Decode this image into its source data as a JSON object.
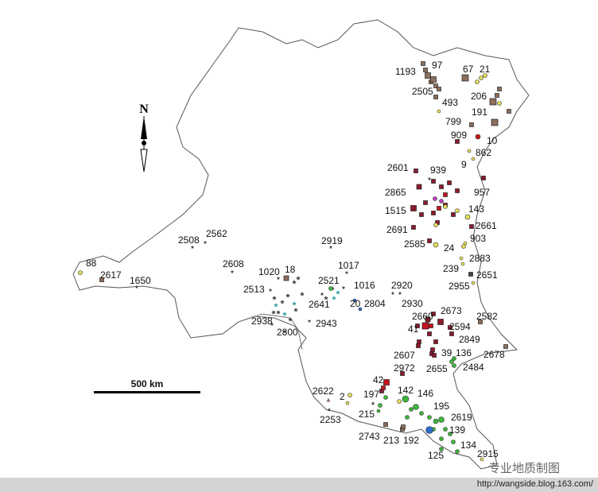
{
  "map": {
    "north_label": "N",
    "scale_label": "500 km",
    "watermark": "专业地质制图",
    "url": "http://wangside.blog.163.com/",
    "colors": {
      "border": "#555555",
      "brown_square": "#8b6e5c",
      "dark_red_square": "#8b1a2e",
      "red": "#c8141e",
      "yellow_circle": "#e6e05a",
      "green_circle": "#3cb83c",
      "teal_star": "#3aa0a0",
      "blue_circle": "#2a6ec8",
      "magenta_circle": "#c040c0",
      "gray_star": "#444444"
    },
    "sites": [
      {
        "label": "1193",
        "symbol": "square",
        "color": "brown_square"
      },
      {
        "label": "97",
        "symbol": "square",
        "color": "brown_square"
      },
      {
        "label": "67",
        "symbol": "square",
        "color": "brown_square"
      },
      {
        "label": "21",
        "symbol": "circle",
        "color": "yellow_circle"
      },
      {
        "label": "2505",
        "symbol": "square",
        "color": "brown_square"
      },
      {
        "label": "493",
        "symbol": "circle",
        "color": "yellow_circle"
      },
      {
        "label": "206",
        "symbol": "square",
        "color": "brown_square"
      },
      {
        "label": "799",
        "symbol": "square",
        "color": "brown_square"
      },
      {
        "label": "191",
        "symbol": "square",
        "color": "brown_square"
      },
      {
        "label": "909",
        "symbol": "square",
        "color": "dark_red_square"
      },
      {
        "label": "10",
        "symbol": "circle",
        "color": "red"
      },
      {
        "label": "862",
        "symbol": "circle",
        "color": "yellow_circle"
      },
      {
        "label": "9",
        "symbol": "circle",
        "color": "yellow_circle"
      },
      {
        "label": "2601",
        "symbol": "square",
        "color": "dark_red_square"
      },
      {
        "label": "939",
        "symbol": "star",
        "color": "gray_star"
      },
      {
        "label": "2865",
        "symbol": "square",
        "color": "dark_red_square"
      },
      {
        "label": "957",
        "symbol": "square",
        "color": "dark_red_square"
      },
      {
        "label": "1515",
        "symbol": "square",
        "color": "dark_red_square"
      },
      {
        "label": "143",
        "symbol": "circle",
        "color": "yellow_circle"
      },
      {
        "label": "2691",
        "symbol": "square",
        "color": "dark_red_square"
      },
      {
        "label": "2661",
        "symbol": "square",
        "color": "dark_red_square"
      },
      {
        "label": "903",
        "symbol": "circle",
        "color": "yellow_circle"
      },
      {
        "label": "2585",
        "symbol": "square",
        "color": "dark_red_square"
      },
      {
        "label": "24",
        "symbol": "circle",
        "color": "yellow_circle"
      },
      {
        "label": "2883",
        "symbol": "circle",
        "color": "yellow_circle"
      },
      {
        "label": "239",
        "symbol": "circle",
        "color": "yellow_circle"
      },
      {
        "label": "2651",
        "symbol": "square",
        "color": "gray_star"
      },
      {
        "label": "2955",
        "symbol": "circle",
        "color": "yellow_circle"
      },
      {
        "label": "2508",
        "symbol": "star",
        "color": "gray_star"
      },
      {
        "label": "2562",
        "symbol": "star",
        "color": "gray_star"
      },
      {
        "label": "2919",
        "symbol": "star",
        "color": "gray_star"
      },
      {
        "label": "88",
        "symbol": "circle",
        "color": "yellow_circle"
      },
      {
        "label": "2617",
        "symbol": "square",
        "color": "brown_square"
      },
      {
        "label": "1650",
        "symbol": "star",
        "color": "gray_star"
      },
      {
        "label": "2608",
        "symbol": "star",
        "color": "gray_star"
      },
      {
        "label": "1020",
        "symbol": "star",
        "color": "gray_star"
      },
      {
        "label": "18",
        "symbol": "square",
        "color": "brown_square"
      },
      {
        "label": "1017",
        "symbol": "star",
        "color": "gray_star"
      },
      {
        "label": "2513",
        "symbol": "star",
        "color": "gray_star"
      },
      {
        "label": "2521",
        "symbol": "circle",
        "color": "green_circle"
      },
      {
        "label": "1016",
        "symbol": "star",
        "color": "gray_star"
      },
      {
        "label": "2641",
        "symbol": "star",
        "color": "gray_star"
      },
      {
        "label": "20",
        "symbol": "circle",
        "color": "blue_circle"
      },
      {
        "label": "2804",
        "symbol": "circle",
        "color": "blue_circle"
      },
      {
        "label": "2920",
        "symbol": "star",
        "color": "gray_star"
      },
      {
        "label": "2930",
        "symbol": "star",
        "color": "gray_star"
      },
      {
        "label": "2938",
        "symbol": "star",
        "color": "gray_star"
      },
      {
        "label": "2943",
        "symbol": "star",
        "color": "gray_star"
      },
      {
        "label": "2800",
        "symbol": "star",
        "color": "gray_star"
      },
      {
        "label": "2660",
        "symbol": "square",
        "color": "dark_red_square"
      },
      {
        "label": "2673",
        "symbol": "square",
        "color": "dark_red_square"
      },
      {
        "label": "2582",
        "symbol": "square",
        "color": "brown_square"
      },
      {
        "label": "41",
        "symbol": "square",
        "color": "red"
      },
      {
        "label": "2594",
        "symbol": "square",
        "color": "dark_red_square"
      },
      {
        "label": "2849",
        "symbol": "square",
        "color": "dark_red_square"
      },
      {
        "label": "2607",
        "symbol": "square",
        "color": "dark_red_square"
      },
      {
        "label": "39",
        "symbol": "square",
        "color": "dark_red_square"
      },
      {
        "label": "136",
        "symbol": "circle",
        "color": "green_circle"
      },
      {
        "label": "2678",
        "symbol": "square",
        "color": "brown_square"
      },
      {
        "label": "2655",
        "symbol": "square",
        "color": "dark_red_square"
      },
      {
        "label": "2484",
        "symbol": "circle",
        "color": "green_circle"
      },
      {
        "label": "2972",
        "symbol": "square",
        "color": "dark_red_square"
      },
      {
        "label": "42",
        "symbol": "square",
        "color": "red"
      },
      {
        "label": "142",
        "symbol": "circle",
        "color": "green_circle"
      },
      {
        "label": "146",
        "symbol": "circle",
        "color": "green_circle"
      },
      {
        "label": "2622",
        "symbol": "triangle",
        "color": "brown_square"
      },
      {
        "label": "2",
        "symbol": "circle",
        "color": "yellow_circle"
      },
      {
        "label": "197",
        "symbol": "triangle",
        "color": "gray_star"
      },
      {
        "label": "195",
        "symbol": "circle",
        "color": "green_circle"
      },
      {
        "label": "2253",
        "symbol": "triangle",
        "color": "gray_star"
      },
      {
        "label": "215",
        "symbol": "circle",
        "color": "green_circle"
      },
      {
        "label": "2619",
        "symbol": "circle",
        "color": "green_circle"
      },
      {
        "label": "139",
        "symbol": "circle",
        "color": "green_circle"
      },
      {
        "label": "2743",
        "symbol": "square",
        "color": "brown_square"
      },
      {
        "label": "213",
        "symbol": "square",
        "color": "brown_square"
      },
      {
        "label": "192",
        "symbol": "square",
        "color": "brown_square"
      },
      {
        "label": "134",
        "symbol": "circle",
        "color": "green_circle"
      },
      {
        "label": "125",
        "symbol": "circle",
        "color": "green_circle"
      },
      {
        "label": "2915",
        "symbol": "circle",
        "color": "yellow_circle"
      }
    ]
  }
}
